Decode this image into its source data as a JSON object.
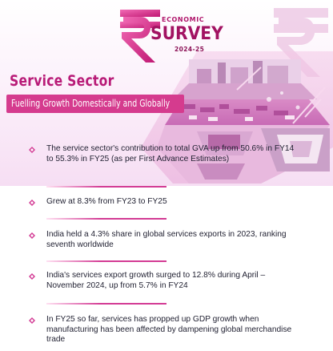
{
  "logo": {
    "line1": "ECONOMIC",
    "line2": "SURVEY",
    "line3": "2024-25"
  },
  "header": {
    "title": "Service Sector",
    "subtitle": "Fuelling Growth Domestically and Globally"
  },
  "points": [
    {
      "text": "The service sector's contribution to total GVA up from 50.6% in FY14 to 55.3% in FY25 (as per First Advance Estimates)"
    },
    {
      "text": "Grew at 8.3% from FY23 to FY25"
    },
    {
      "text": "India held a 4.3% share in global services exports in 2023, ranking seventh worldwide"
    },
    {
      "text": "India's services export growth surged to 12.8% during April – November 2024, up from 5.7% in FY24"
    },
    {
      "text": "In FY25 so far, services has propped up GDP growth when manufacturing has been affected by dampening global merchandise trade"
    }
  ],
  "colors": {
    "accent": "#b81a77",
    "band": "#d53b8e",
    "background_tint": "#f6def3"
  },
  "icons": {
    "logo_symbol": "rupee-icon",
    "bullet": "diamond-bullet-icon"
  }
}
